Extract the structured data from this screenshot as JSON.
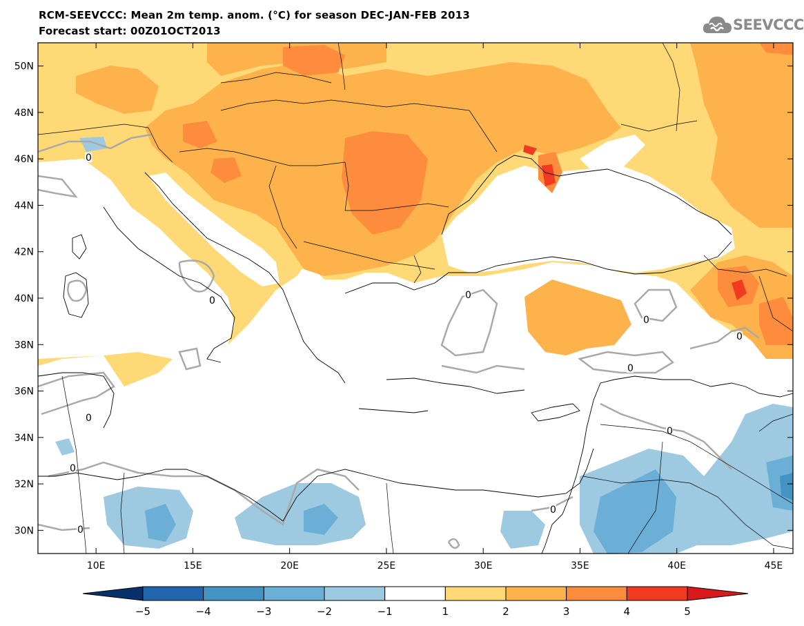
{
  "title_line1": "RCM-SEEVCCC: Mean 2m temp. anom. (°C) for season DEC-JAN-FEB 2013",
  "title_line2": "Forecast start: 00Z01OCT2013",
  "logo_text": "SEEVCCC",
  "map": {
    "lon_range": [
      7,
      46
    ],
    "lat_range": [
      29,
      51
    ],
    "lon_ticks": [
      "10E",
      "15E",
      "20E",
      "25E",
      "30E",
      "35E",
      "40E",
      "45E"
    ],
    "lat_ticks": [
      "50N",
      "48N",
      "46N",
      "44N",
      "42N",
      "40N",
      "38N",
      "36N",
      "34N",
      "32N",
      "30N"
    ],
    "contour_label": "0"
  },
  "colorbar": {
    "labels": [
      "-5",
      "-4",
      "-3",
      "-2",
      "-1",
      "1",
      "2",
      "3",
      "4",
      "5"
    ],
    "colors": [
      "#08306b",
      "#2166ac",
      "#4393c3",
      "#6baed6",
      "#9ecae1",
      "#ffffff",
      "#fed976",
      "#feb24c",
      "#fd8d3c",
      "#f03b20",
      "#d7191c"
    ]
  }
}
